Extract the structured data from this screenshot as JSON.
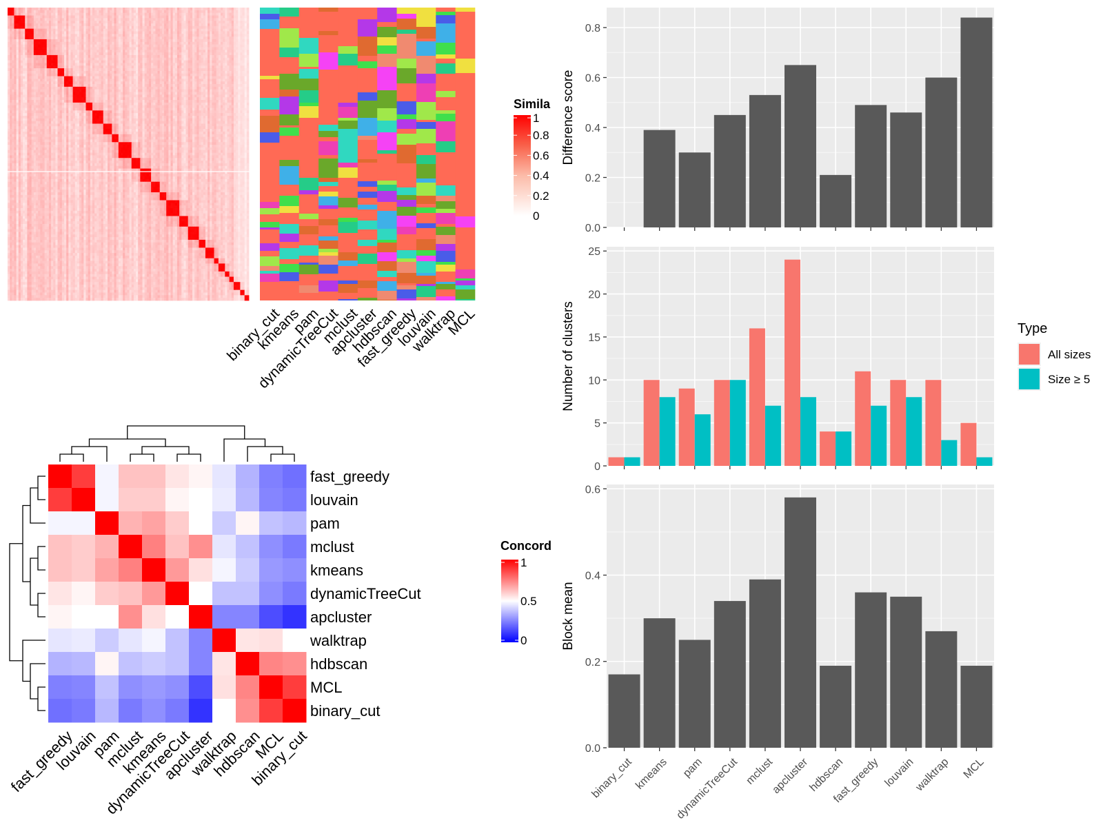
{
  "chart_data": [
    {
      "type": "heatmap",
      "name": "similarity-heatmap",
      "legend_title": "Similarity",
      "legend_title_visible": "Simila",
      "legend_ticks": [
        "1",
        "0.8",
        "0.6",
        "0.4",
        "0.2",
        "0"
      ],
      "colors": {
        "high": "#ff0000",
        "low": "#ffffff"
      },
      "clustering_methods": [
        "binary_cut",
        "kmeans",
        "pam",
        "dynamicTreeCut",
        "mclust",
        "apcluster",
        "hdbscan",
        "fast_greedy",
        "louvain",
        "walktrap",
        "MCL"
      ],
      "diagonal_blocks": [
        3,
        5,
        4,
        6,
        5,
        3,
        4,
        6,
        3,
        5,
        4,
        3,
        6,
        4,
        5,
        4,
        3,
        6,
        4,
        5,
        3,
        4,
        2,
        3,
        2,
        2,
        3,
        2,
        2
      ],
      "membership_colors": [
        "#ff6a55",
        "#4a5ce8",
        "#25cc88",
        "#ee3fb4",
        "#3fdf4c",
        "#b438e8",
        "#6aa82a",
        "#f08a70",
        "#30d8c0",
        "#f542f5",
        "#a0e84a",
        "#e06a30",
        "#3fb0e8",
        "#f0e040"
      ]
    },
    {
      "type": "heatmap",
      "name": "concordance-heatmap",
      "legend_title": "Concordance",
      "legend_title_visible": "Concord",
      "legend_ticks": [
        "1",
        "0.5",
        "0"
      ],
      "colors": {
        "high": "#ff0000",
        "mid": "#ffffff",
        "low": "#0000ff"
      },
      "rows": [
        "fast_greedy",
        "louvain",
        "pam",
        "mclust",
        "kmeans",
        "dynamicTreeCut",
        "apcluster",
        "walktrap",
        "hdbscan",
        "MCL",
        "binary_cut"
      ],
      "cols": [
        "fast_greedy",
        "louvain",
        "pam",
        "mclust",
        "kmeans",
        "dynamicTreeCut",
        "apcluster",
        "walktrap",
        "hdbscan",
        "MCL",
        "binary_cut"
      ],
      "values": [
        [
          1.0,
          0.88,
          0.48,
          0.62,
          0.62,
          0.55,
          0.52,
          0.45,
          0.35,
          0.25,
          0.22
        ],
        [
          0.88,
          1.0,
          0.48,
          0.6,
          0.6,
          0.52,
          0.5,
          0.46,
          0.36,
          0.26,
          0.24
        ],
        [
          0.48,
          0.48,
          1.0,
          0.65,
          0.68,
          0.6,
          0.5,
          0.4,
          0.52,
          0.38,
          0.36
        ],
        [
          0.62,
          0.6,
          0.65,
          1.0,
          0.75,
          0.62,
          0.72,
          0.45,
          0.38,
          0.28,
          0.24
        ],
        [
          0.62,
          0.6,
          0.68,
          0.75,
          1.0,
          0.7,
          0.56,
          0.48,
          0.4,
          0.3,
          0.28
        ],
        [
          0.55,
          0.52,
          0.6,
          0.62,
          0.7,
          1.0,
          0.5,
          0.38,
          0.38,
          0.28,
          0.24
        ],
        [
          0.52,
          0.5,
          0.5,
          0.72,
          0.56,
          0.5,
          1.0,
          0.26,
          0.26,
          0.15,
          0.1
        ],
        [
          0.45,
          0.46,
          0.4,
          0.45,
          0.48,
          0.38,
          0.26,
          1.0,
          0.55,
          0.56,
          0.5
        ],
        [
          0.35,
          0.36,
          0.52,
          0.38,
          0.4,
          0.38,
          0.26,
          0.55,
          1.0,
          0.74,
          0.72
        ],
        [
          0.25,
          0.26,
          0.38,
          0.28,
          0.3,
          0.28,
          0.15,
          0.56,
          0.74,
          1.0,
          0.88
        ],
        [
          0.22,
          0.24,
          0.36,
          0.24,
          0.28,
          0.24,
          0.1,
          0.5,
          0.72,
          0.88,
          1.0
        ]
      ]
    },
    {
      "type": "bar",
      "name": "difference-score",
      "categories": [
        "binary_cut",
        "kmeans",
        "pam",
        "dynamicTreeCut",
        "mclust",
        "apcluster",
        "hdbscan",
        "fast_greedy",
        "louvain",
        "walktrap",
        "MCL"
      ],
      "values": [
        0.0,
        0.39,
        0.3,
        0.45,
        0.53,
        0.65,
        0.21,
        0.49,
        0.46,
        0.6,
        0.84
      ],
      "ylabel": "Difference score",
      "ylim": [
        0,
        0.88
      ],
      "yticks": [
        "0.0",
        "0.2",
        "0.4",
        "0.6",
        "0.8"
      ],
      "bar_color": "#595959",
      "panel_bg": "#ebebeb"
    },
    {
      "type": "bar",
      "name": "number-of-clusters",
      "categories": [
        "binary_cut",
        "kmeans",
        "pam",
        "dynamicTreeCut",
        "mclust",
        "apcluster",
        "hdbscan",
        "fast_greedy",
        "louvain",
        "walktrap",
        "MCL"
      ],
      "series": [
        {
          "name": "All sizes",
          "color": "#f8766d",
          "values": [
            1,
            10,
            9,
            10,
            16,
            24,
            4,
            11,
            10,
            10,
            5
          ]
        },
        {
          "name": "Size ≥ 5",
          "color": "#00bfc4",
          "values": [
            1,
            8,
            6,
            10,
            7,
            8,
            4,
            7,
            8,
            3,
            1
          ]
        }
      ],
      "ylabel": "Number of clusters",
      "ylim": [
        0,
        25.5
      ],
      "yticks": [
        "0",
        "5",
        "10",
        "15",
        "20",
        "25"
      ],
      "legend_title": "Type",
      "legend_position": "right",
      "panel_bg": "#ebebeb"
    },
    {
      "type": "bar",
      "name": "block-mean",
      "categories": [
        "binary_cut",
        "kmeans",
        "pam",
        "dynamicTreeCut",
        "mclust",
        "apcluster",
        "hdbscan",
        "fast_greedy",
        "louvain",
        "walktrap",
        "MCL"
      ],
      "values": [
        0.17,
        0.3,
        0.25,
        0.34,
        0.39,
        0.58,
        0.19,
        0.36,
        0.35,
        0.27,
        0.19
      ],
      "ylabel": "Block mean",
      "ylim": [
        0,
        0.61
      ],
      "yticks": [
        "0.0",
        "0.2",
        "0.4",
        "0.6"
      ],
      "bar_color": "#595959",
      "panel_bg": "#ebebeb"
    }
  ]
}
